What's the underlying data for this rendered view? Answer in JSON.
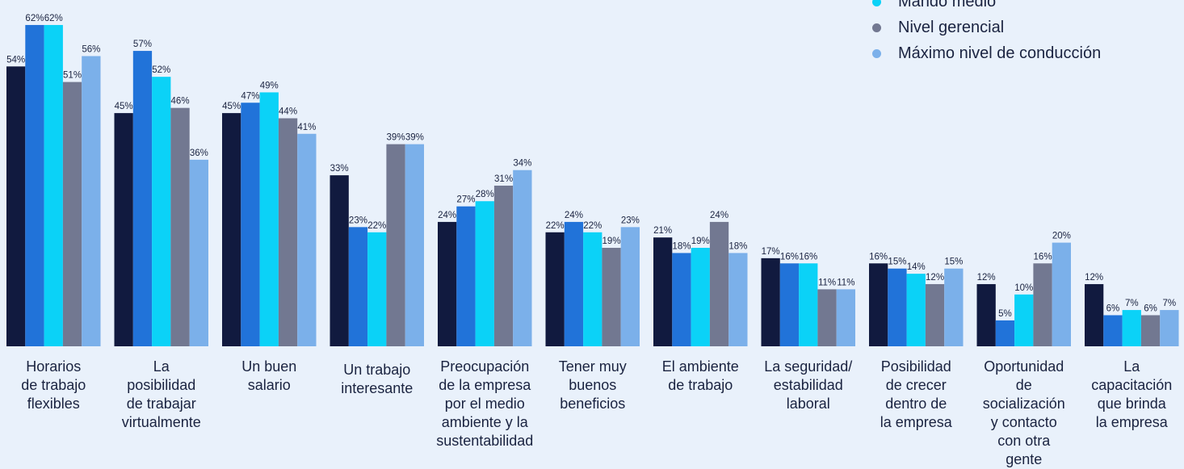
{
  "chart_data": {
    "type": "bar",
    "categories": [
      "Horarios de trabajo flexibles",
      "La posibilidad de trabajar virtualmente",
      "Un buen salario",
      "Un trabajo interesante",
      "Preocupación de la empresa por el medio ambiente y la sustentabilidad",
      "Tener muy buenos beneficios",
      "El ambiente de trabajo",
      "La seguridad/ estabilidad laboral",
      "Posibilidad de crecer dentro de la empresa",
      "Oportunidad de socialización y contacto con otra gente",
      "La capacitación que brinda la empresa"
    ],
    "series": [
      {
        "name": "",
        "color": "#111a3f",
        "values": [
          54,
          45,
          45,
          33,
          24,
          22,
          21,
          17,
          16,
          12,
          12
        ]
      },
      {
        "name": "",
        "color": "#2173d9",
        "values": [
          62,
          57,
          47,
          23,
          27,
          24,
          18,
          16,
          15,
          5,
          6
        ]
      },
      {
        "name": "Mando medio",
        "color": "#0bd2f7",
        "values": [
          62,
          52,
          49,
          22,
          28,
          22,
          19,
          16,
          14,
          10,
          7
        ]
      },
      {
        "name": "Nivel gerencial",
        "color": "#727891",
        "values": [
          51,
          46,
          44,
          39,
          31,
          19,
          24,
          11,
          12,
          16,
          6
        ]
      },
      {
        "name": "Máximo nivel de conducción",
        "color": "#7bb0ea",
        "values": [
          56,
          36,
          41,
          39,
          34,
          23,
          18,
          11,
          15,
          20,
          7
        ]
      }
    ],
    "value_suffix": "%",
    "ylim": [
      0,
      62
    ],
    "grid": false,
    "legend_position": "top-right"
  },
  "legend": [
    {
      "label": "Mando medio",
      "color": "#0bd2f7"
    },
    {
      "label": "Nivel gerencial",
      "color": "#727891"
    },
    {
      "label": "Máximo nivel de conducción",
      "color": "#7bb0ea"
    }
  ],
  "category_labels": [
    [
      "Horarios",
      "de trabajo",
      "flexibles"
    ],
    [
      "La",
      "posibilidad",
      "de trabajar",
      "virtualmente"
    ],
    [
      "Un buen",
      "salario"
    ],
    [
      "Un trabajo",
      "interesante"
    ],
    [
      "Preocupación",
      "de la empresa",
      "por el medio",
      "ambiente y la",
      "sustentabilidad"
    ],
    [
      "Tener muy",
      "buenos",
      "beneficios"
    ],
    [
      "El ambiente",
      "de trabajo"
    ],
    [
      "La seguridad/",
      "estabilidad",
      "laboral"
    ],
    [
      "Posibilidad",
      "de crecer",
      "dentro de",
      "la empresa"
    ],
    [
      "Oportunidad",
      "de",
      "socialización",
      "y contacto",
      "con otra",
      "gente"
    ],
    [
      "La",
      "capacitación",
      "que brinda",
      "la empresa"
    ]
  ]
}
